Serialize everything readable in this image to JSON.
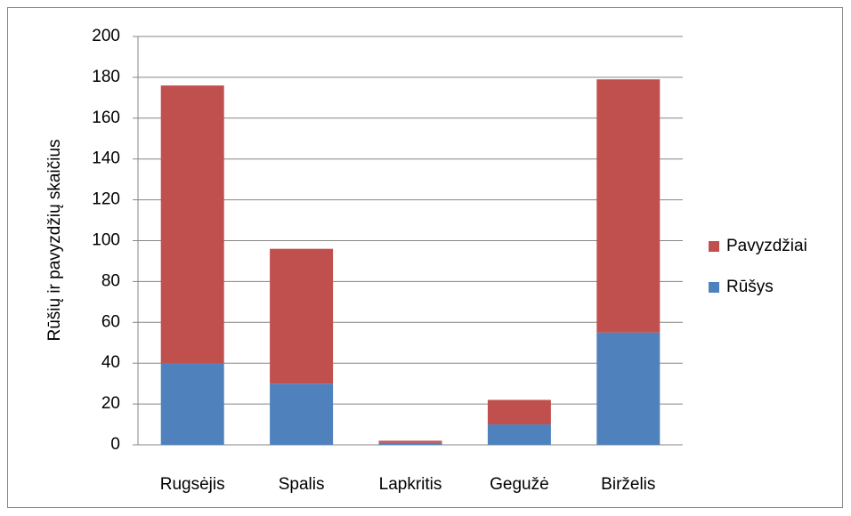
{
  "chart_data": {
    "type": "stacked_bar",
    "y_label": "Rūšių ir pavyzdžių skaičius",
    "categories": [
      "Rugsėjis",
      "Spalis",
      "Lapkritis",
      "Gegužė",
      "Birželis"
    ],
    "series": [
      {
        "name": "Rūšys",
        "color": "#4f81bd",
        "values": [
          40,
          30,
          1,
          10,
          55
        ]
      },
      {
        "name": "Pavyzdžiai",
        "color": "#c0504d",
        "values": [
          136,
          66,
          1,
          12,
          124
        ]
      }
    ],
    "ylim": [
      0,
      200
    ],
    "yticks": [
      0,
      20,
      40,
      60,
      80,
      100,
      120,
      140,
      160,
      180,
      200
    ],
    "grid": true,
    "legend": "right"
  }
}
